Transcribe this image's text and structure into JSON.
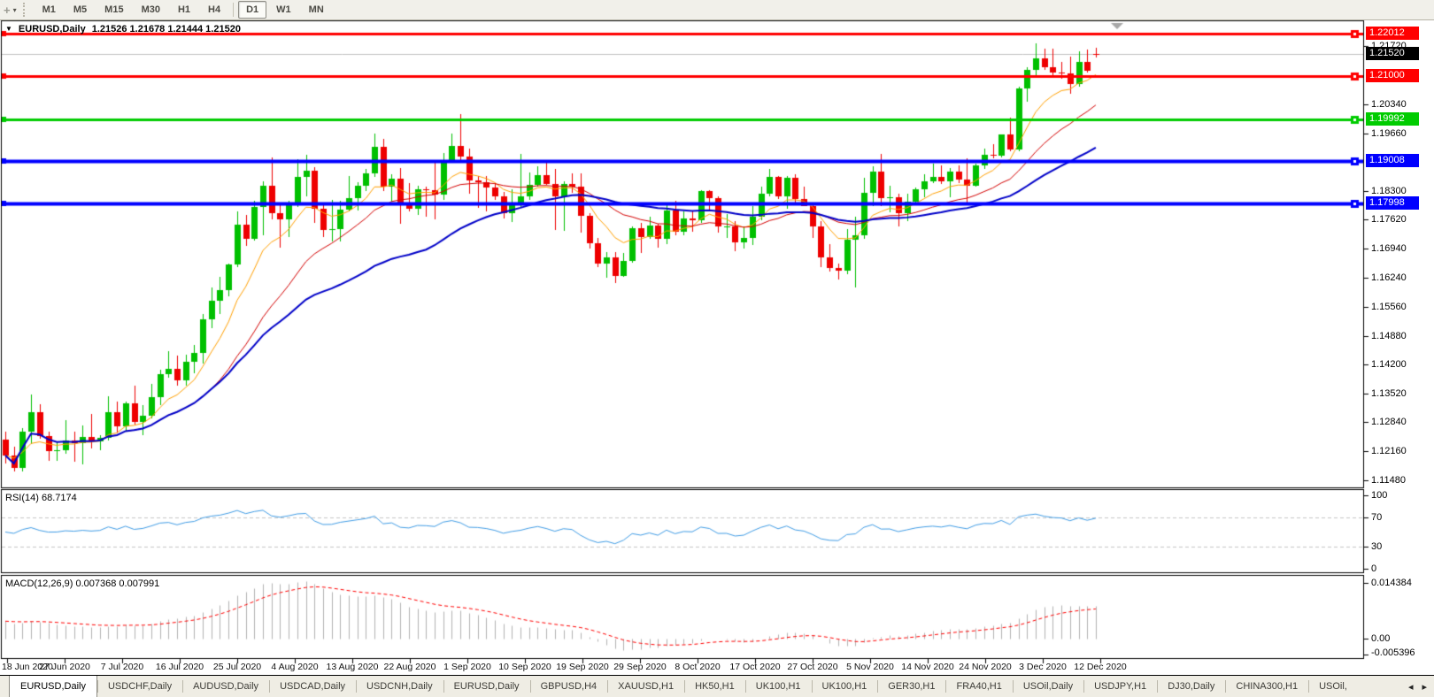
{
  "toolbar": {
    "cursor_glyph": "+",
    "dropdown_caret": "▾",
    "timeframes": [
      "M1",
      "M5",
      "M15",
      "M30",
      "H1",
      "H4",
      "D1",
      "W1",
      "MN"
    ],
    "active_timeframe": "D1",
    "separator_after": "H4"
  },
  "chart": {
    "menu_arrow": "▼",
    "title_symbol": "EURUSD,Daily",
    "title_quotes": "1.21526 1.21678 1.21444 1.21520"
  },
  "indicators": {
    "rsi": {
      "label": "RSI(14) 68.7174",
      "period": 14,
      "value": "68.7174",
      "tick_values": [
        100,
        70,
        30,
        0
      ],
      "tick_labels": [
        "100",
        "70",
        "30",
        "0"
      ],
      "level_lines": [
        70,
        30
      ],
      "color": "#419de6"
    },
    "macd": {
      "label": "MACD(12,26,9) 0.007368 0.007991",
      "params": "12,26,9",
      "macd_value": "0.007368",
      "signal_value": "0.007991",
      "ticks": [
        {
          "v": 0.014384,
          "t": "0.014384"
        },
        {
          "v": 0,
          "t": "0.00"
        },
        {
          "v": -0.005396,
          "t": "-0.005396"
        }
      ],
      "hist_color": "#b2b2b2",
      "signal_color": "#ff0000"
    }
  },
  "axis": {
    "price_ticks": [
      {
        "v": 1.2172,
        "t": "1.21720"
      },
      {
        "v": 1.2034,
        "t": "1.20340"
      },
      {
        "v": 1.1966,
        "t": "1.19660"
      },
      {
        "v": 1.183,
        "t": "1.18300"
      },
      {
        "v": 1.1762,
        "t": "1.17620"
      },
      {
        "v": 1.1694,
        "t": "1.16940"
      },
      {
        "v": 1.1624,
        "t": "1.16240"
      },
      {
        "v": 1.1556,
        "t": "1.15560"
      },
      {
        "v": 1.1488,
        "t": "1.14880"
      },
      {
        "v": 1.142,
        "t": "1.14200"
      },
      {
        "v": 1.1352,
        "t": "1.13520"
      },
      {
        "v": 1.1284,
        "t": "1.12840"
      },
      {
        "v": 1.1216,
        "t": "1.12160"
      },
      {
        "v": 1.1148,
        "t": "1.11480"
      }
    ],
    "line_labels": [
      {
        "v": 1.22012,
        "t": "1.22012",
        "color": "#ff0000"
      },
      {
        "v": 1.21,
        "t": "1.21000",
        "color": "#ff0000"
      },
      {
        "v": 1.19992,
        "t": "1.19992",
        "color": "#00cc00"
      },
      {
        "v": 1.19008,
        "t": "1.19008",
        "color": "#0000ff"
      },
      {
        "v": 1.17998,
        "t": "1.17998",
        "color": "#0000ff"
      }
    ],
    "current_label": {
      "v": 1.2152,
      "t": "1.21520",
      "color": "#000000"
    }
  },
  "tabs": {
    "items": [
      {
        "label": "EURUSD,Daily",
        "active": true
      },
      {
        "label": "USDCHF,Daily",
        "active": false
      },
      {
        "label": "AUDUSD,Daily",
        "active": false
      },
      {
        "label": "USDCAD,Daily",
        "active": false
      },
      {
        "label": "USDCNH,Daily",
        "active": false
      },
      {
        "label": "EURUSD,Daily",
        "active": false
      },
      {
        "label": "GBPUSD,H4",
        "active": false
      },
      {
        "label": "XAUUSD,H1",
        "active": false
      },
      {
        "label": "HK50,H1",
        "active": false
      },
      {
        "label": "UK100,H1",
        "active": false
      },
      {
        "label": "UK100,H1",
        "active": false
      },
      {
        "label": "GER30,H1",
        "active": false
      },
      {
        "label": "FRA40,H1",
        "active": false
      },
      {
        "label": "USOil,Daily",
        "active": false
      },
      {
        "label": "USDJPY,H1",
        "active": false
      },
      {
        "label": "DJ30,Daily",
        "active": false
      },
      {
        "label": "CHINA300,H1",
        "active": false
      },
      {
        "label": "USOil,",
        "active": false
      }
    ],
    "scroll_left": "◂",
    "scroll_right": "▸"
  },
  "chart_data": {
    "type": "candlestick",
    "symbol": "EURUSD",
    "timeframe": "Daily",
    "title": "EURUSD,Daily 1.21526 1.21678 1.21444 1.21520",
    "x_labels": [
      "18 Jun 2020",
      "27 Jun 2020",
      "7 Jul 2020",
      "16 Jul 2020",
      "25 Jul 2020",
      "4 Aug 2020",
      "13 Aug 2020",
      "22 Aug 2020",
      "1 Sep 2020",
      "10 Sep 2020",
      "19 Sep 2020",
      "29 Sep 2020",
      "8 Oct 2020",
      "17 Oct 2020",
      "27 Oct 2020",
      "5 Nov 2020",
      "14 Nov 2020",
      "24 Nov 2020",
      "3 Dec 2020",
      "12 Dec 2020"
    ],
    "y_axis_range": [
      1.113,
      1.2228
    ],
    "current_price": 1.2152,
    "grid": false,
    "up_color": "#00c000",
    "down_color": "#ee0000",
    "levels": [
      {
        "price": 1.22012,
        "color": "#ff0000",
        "width": 3
      },
      {
        "price": 1.21,
        "color": "#ff0000",
        "width": 3
      },
      {
        "price": 1.19992,
        "color": "#00cc00",
        "width": 3
      },
      {
        "price": 1.19008,
        "color": "#0000ff",
        "width": 4
      },
      {
        "price": 1.17998,
        "color": "#0000ff",
        "width": 4
      }
    ],
    "moving_averages": [
      {
        "kind": "ema",
        "period": 8,
        "color": "#ffa000",
        "width": 1
      },
      {
        "kind": "lwma",
        "period": 25,
        "color": "#d40000",
        "width": 1
      },
      {
        "kind": "lwma",
        "period": 50,
        "color": "#0000c8",
        "width": 2
      }
    ],
    "rsi": {
      "period": 14,
      "last": 68.7174
    },
    "macd": {
      "fast": 12,
      "slow": 26,
      "signal": 9,
      "last_macd": 0.007368,
      "last_signal": 0.007991,
      "scale_max": 0.014384,
      "scale_min": -0.005396
    },
    "ohlc": [
      [
        1.1244,
        1.1262,
        1.1186,
        1.1206
      ],
      [
        1.1206,
        1.1227,
        1.1168,
        1.1177
      ],
      [
        1.1177,
        1.127,
        1.1169,
        1.1261
      ],
      [
        1.1261,
        1.1349,
        1.1233,
        1.1307
      ],
      [
        1.1307,
        1.1326,
        1.1245,
        1.1251
      ],
      [
        1.1251,
        1.1262,
        1.1194,
        1.1216
      ],
      [
        1.1216,
        1.1239,
        1.1192,
        1.1218
      ],
      [
        1.1218,
        1.1288,
        1.1209,
        1.1242
      ],
      [
        1.1242,
        1.1262,
        1.1191,
        1.1234
      ],
      [
        1.1234,
        1.1277,
        1.1185,
        1.125
      ],
      [
        1.125,
        1.1303,
        1.1223,
        1.1239
      ],
      [
        1.1239,
        1.1254,
        1.1218,
        1.1248
      ],
      [
        1.1248,
        1.1346,
        1.1242,
        1.1308
      ],
      [
        1.1308,
        1.1333,
        1.1259,
        1.1274
      ],
      [
        1.1274,
        1.1333,
        1.1263,
        1.1329
      ],
      [
        1.1329,
        1.1371,
        1.1278,
        1.1284
      ],
      [
        1.1284,
        1.1325,
        1.1254,
        1.13
      ],
      [
        1.13,
        1.1375,
        1.1293,
        1.1343
      ],
      [
        1.1343,
        1.1409,
        1.1325,
        1.1398
      ],
      [
        1.1398,
        1.1452,
        1.139,
        1.1411
      ],
      [
        1.1411,
        1.1442,
        1.1371,
        1.1383
      ],
      [
        1.1383,
        1.1444,
        1.137,
        1.1427
      ],
      [
        1.1427,
        1.1467,
        1.14,
        1.1447
      ],
      [
        1.1447,
        1.154,
        1.1422,
        1.1526
      ],
      [
        1.1526,
        1.1601,
        1.1507,
        1.157
      ],
      [
        1.157,
        1.1627,
        1.154,
        1.1596
      ],
      [
        1.1596,
        1.1658,
        1.1581,
        1.1656
      ],
      [
        1.1656,
        1.1782,
        1.165,
        1.175
      ],
      [
        1.175,
        1.1773,
        1.17,
        1.1716
      ],
      [
        1.1716,
        1.1807,
        1.1712,
        1.1791
      ],
      [
        1.1791,
        1.1852,
        1.1725,
        1.1843
      ],
      [
        1.1843,
        1.1908,
        1.1762,
        1.1778
      ],
      [
        1.1778,
        1.1797,
        1.1696,
        1.1762
      ],
      [
        1.1762,
        1.1806,
        1.172,
        1.1803
      ],
      [
        1.1803,
        1.1904,
        1.1791,
        1.1863
      ],
      [
        1.1863,
        1.1916,
        1.1817,
        1.1878
      ],
      [
        1.1878,
        1.1886,
        1.1754,
        1.1787
      ],
      [
        1.1787,
        1.1798,
        1.1722,
        1.1738
      ],
      [
        1.1738,
        1.1808,
        1.1711,
        1.174
      ],
      [
        1.174,
        1.1807,
        1.171,
        1.1785
      ],
      [
        1.1785,
        1.1864,
        1.1782,
        1.1813
      ],
      [
        1.1813,
        1.1851,
        1.1783,
        1.1842
      ],
      [
        1.1842,
        1.1882,
        1.183,
        1.1872
      ],
      [
        1.1872,
        1.1966,
        1.1863,
        1.1933
      ],
      [
        1.1933,
        1.1952,
        1.1829,
        1.1839
      ],
      [
        1.1839,
        1.1869,
        1.1805,
        1.1859
      ],
      [
        1.1859,
        1.1883,
        1.1753,
        1.1797
      ],
      [
        1.1797,
        1.1848,
        1.1782,
        1.1787
      ],
      [
        1.1787,
        1.1843,
        1.1773,
        1.1834
      ],
      [
        1.1834,
        1.184,
        1.1768,
        1.1831
      ],
      [
        1.1831,
        1.1901,
        1.1763,
        1.1821
      ],
      [
        1.1821,
        1.192,
        1.1809,
        1.1903
      ],
      [
        1.1903,
        1.1966,
        1.1898,
        1.1935
      ],
      [
        1.1935,
        1.2011,
        1.1901,
        1.191
      ],
      [
        1.191,
        1.1929,
        1.1823,
        1.1854
      ],
      [
        1.1854,
        1.1865,
        1.1789,
        1.1851
      ],
      [
        1.1851,
        1.1865,
        1.1781,
        1.1838
      ],
      [
        1.1838,
        1.1848,
        1.1809,
        1.1816
      ],
      [
        1.1816,
        1.1827,
        1.1765,
        1.1778
      ],
      [
        1.1778,
        1.1834,
        1.1756,
        1.1801
      ],
      [
        1.1801,
        1.1917,
        1.1789,
        1.1816
      ],
      [
        1.1816,
        1.1874,
        1.1809,
        1.1845
      ],
      [
        1.1845,
        1.1888,
        1.1839,
        1.1867
      ],
      [
        1.1867,
        1.19,
        1.1845,
        1.1846
      ],
      [
        1.1846,
        1.1882,
        1.1737,
        1.1816
      ],
      [
        1.1816,
        1.1852,
        1.1736,
        1.1847
      ],
      [
        1.1847,
        1.1871,
        1.1826,
        1.1839
      ],
      [
        1.1839,
        1.1872,
        1.1732,
        1.1772
      ],
      [
        1.1772,
        1.1778,
        1.1693,
        1.1707
      ],
      [
        1.1707,
        1.1719,
        1.1651,
        1.1659
      ],
      [
        1.1659,
        1.1686,
        1.1626,
        1.1672
      ],
      [
        1.1672,
        1.1685,
        1.1612,
        1.163
      ],
      [
        1.163,
        1.1684,
        1.1628,
        1.1665
      ],
      [
        1.1665,
        1.1745,
        1.1661,
        1.1742
      ],
      [
        1.1742,
        1.1755,
        1.1684,
        1.172
      ],
      [
        1.172,
        1.1769,
        1.1717,
        1.1748
      ],
      [
        1.1748,
        1.1753,
        1.1695,
        1.1716
      ],
      [
        1.1716,
        1.1798,
        1.1705,
        1.1784
      ],
      [
        1.1784,
        1.1807,
        1.1725,
        1.1733
      ],
      [
        1.1733,
        1.1781,
        1.1725,
        1.1764
      ],
      [
        1.1764,
        1.1781,
        1.1733,
        1.176
      ],
      [
        1.176,
        1.1831,
        1.1755,
        1.1829
      ],
      [
        1.1829,
        1.1832,
        1.1785,
        1.1812
      ],
      [
        1.1812,
        1.1817,
        1.1731,
        1.1745
      ],
      [
        1.1745,
        1.1775,
        1.1719,
        1.1746
      ],
      [
        1.1746,
        1.1758,
        1.1688,
        1.1708
      ],
      [
        1.1708,
        1.1747,
        1.1694,
        1.1718
      ],
      [
        1.1718,
        1.1794,
        1.1703,
        1.177
      ],
      [
        1.177,
        1.184,
        1.176,
        1.1823
      ],
      [
        1.1823,
        1.1881,
        1.1817,
        1.1862
      ],
      [
        1.1862,
        1.1866,
        1.1811,
        1.1816
      ],
      [
        1.1816,
        1.1864,
        1.1787,
        1.186
      ],
      [
        1.186,
        1.187,
        1.1802,
        1.181
      ],
      [
        1.181,
        1.184,
        1.1793,
        1.1795
      ],
      [
        1.1795,
        1.1801,
        1.1718,
        1.1746
      ],
      [
        1.1746,
        1.1759,
        1.165,
        1.1674
      ],
      [
        1.1674,
        1.1704,
        1.1639,
        1.1647
      ],
      [
        1.1647,
        1.1658,
        1.1621,
        1.1641
      ],
      [
        1.1641,
        1.174,
        1.1633,
        1.1715
      ],
      [
        1.1715,
        1.177,
        1.1603,
        1.1725
      ],
      [
        1.1725,
        1.1861,
        1.1717,
        1.1826
      ],
      [
        1.1826,
        1.1887,
        1.1795,
        1.1875
      ],
      [
        1.1875,
        1.1918,
        1.1795,
        1.1813
      ],
      [
        1.1813,
        1.1843,
        1.178,
        1.1815
      ],
      [
        1.1815,
        1.1824,
        1.1745,
        1.1777
      ],
      [
        1.1777,
        1.1823,
        1.1759,
        1.1804
      ],
      [
        1.1804,
        1.1838,
        1.1799,
        1.1834
      ],
      [
        1.1834,
        1.1869,
        1.1814,
        1.1852
      ],
      [
        1.1852,
        1.1894,
        1.1849,
        1.1863
      ],
      [
        1.1863,
        1.1891,
        1.1846,
        1.1853
      ],
      [
        1.1853,
        1.1884,
        1.1815,
        1.1876
      ],
      [
        1.1876,
        1.1891,
        1.1849,
        1.1857
      ],
      [
        1.1857,
        1.1906,
        1.18,
        1.1842
      ],
      [
        1.1842,
        1.1895,
        1.184,
        1.1891
      ],
      [
        1.1891,
        1.1929,
        1.1881,
        1.1916
      ],
      [
        1.1916,
        1.1941,
        1.1906,
        1.1914
      ],
      [
        1.1914,
        1.1964,
        1.1908,
        1.1963
      ],
      [
        1.1963,
        1.2003,
        1.1924,
        1.1927
      ],
      [
        1.1927,
        1.2076,
        1.1923,
        1.2071
      ],
      [
        1.2071,
        1.2122,
        1.204,
        1.2115
      ],
      [
        1.2115,
        1.2177,
        1.2098,
        1.2143
      ],
      [
        1.2143,
        1.2165,
        1.2115,
        1.2122
      ],
      [
        1.2122,
        1.2166,
        1.2103,
        1.211
      ],
      [
        1.211,
        1.2134,
        1.2094,
        1.2106
      ],
      [
        1.2106,
        1.2147,
        1.2059,
        1.2081
      ],
      [
        1.2081,
        1.2159,
        1.2076,
        1.2135
      ],
      [
        1.2135,
        1.2163,
        1.211,
        1.2113
      ],
      [
        1.21526,
        1.21678,
        1.21444,
        1.2152
      ]
    ]
  }
}
